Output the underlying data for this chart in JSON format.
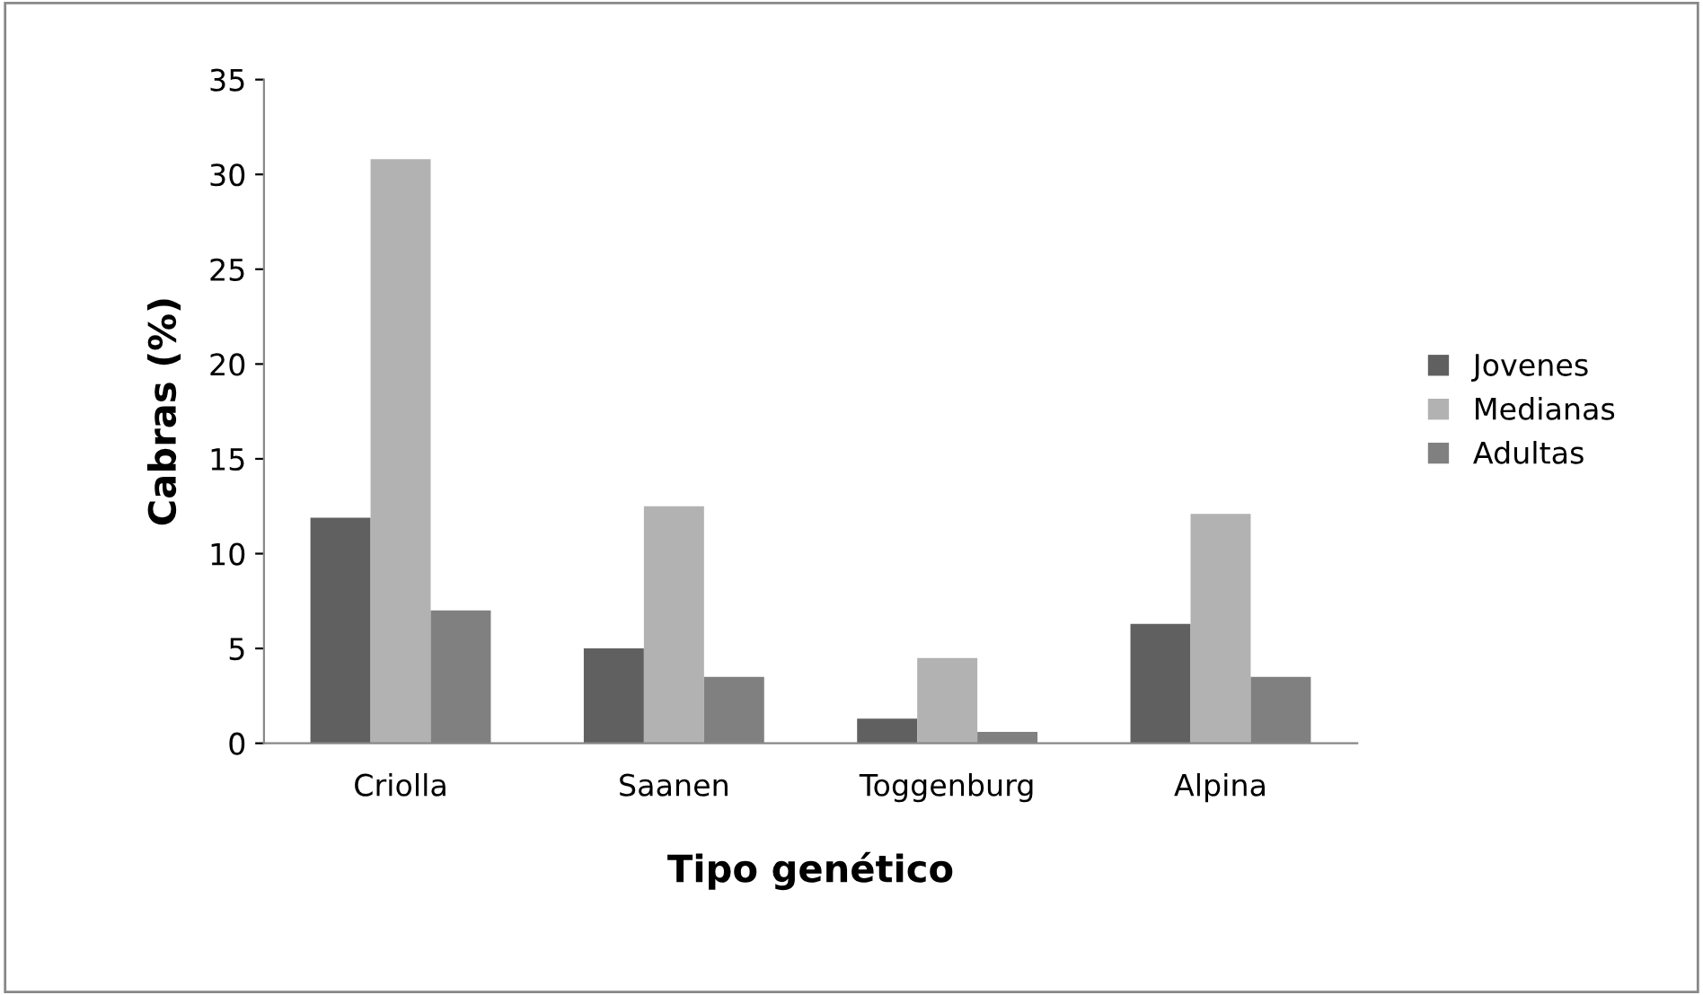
{
  "chart_data": {
    "type": "bar",
    "xlabel": "Tipo genético",
    "ylabel": "Cabras (%)",
    "categories": [
      "Criolla",
      "Saanen",
      "Toggenburg",
      "Alpina"
    ],
    "series": [
      {
        "name": "Jovenes",
        "color": "#606060",
        "values": [
          11.9,
          5.0,
          1.3,
          6.3
        ]
      },
      {
        "name": "Medianas",
        "color": "#b2b2b2",
        "values": [
          30.8,
          12.5,
          4.5,
          12.1
        ]
      },
      {
        "name": "Adultas",
        "color": "#808080",
        "values": [
          7.0,
          3.5,
          0.6,
          3.5
        ]
      }
    ],
    "ylim": [
      0,
      35
    ],
    "yticks": [
      0,
      5,
      10,
      15,
      20,
      25,
      30,
      35
    ],
    "grid": false,
    "legend": "right"
  }
}
